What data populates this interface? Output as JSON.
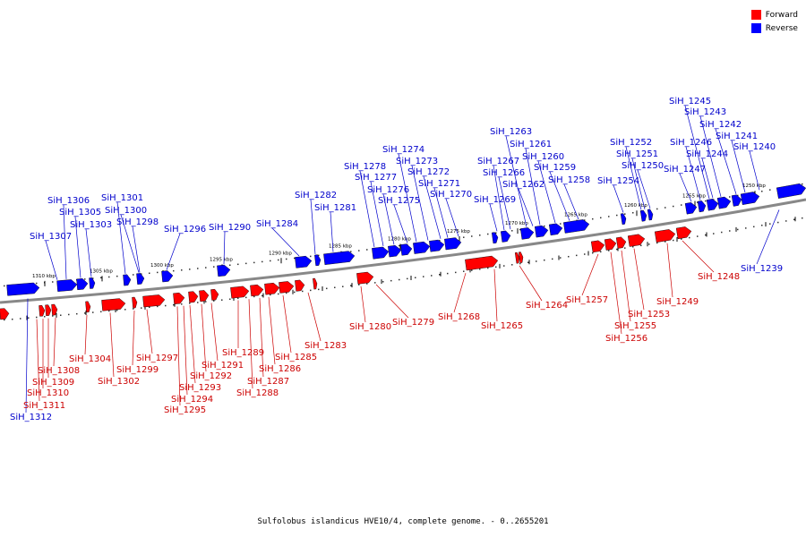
{
  "legend": {
    "forward_label": "Forward",
    "reverse_label": "Reverse",
    "forward_color": "#ff0000",
    "reverse_color": "#0000ff"
  },
  "caption": "Sulfolobus islandicus HVE10/4, complete genome. - 0..2655201",
  "colors": {
    "forward": "#ff0000",
    "reverse": "#0000ff",
    "backbone": "#888888",
    "label_forward": "#cc0000",
    "label_reverse": "#0000cc"
  },
  "scale_labels": [
    "1310 kbp",
    "1305 kbp",
    "1300 kbp",
    "1295 kbp",
    "1290 kbp",
    "1285 kbp",
    "1280 kbp",
    "1275 kbp",
    "1270 kbp",
    "1265 kbp",
    "1260 kbp",
    "1255 kbp",
    "1250 kbp"
  ],
  "reverse_genes": [
    "SiH_1312",
    "SiH_1307",
    "SiH_1306",
    "SiH_1305",
    "SiH_1303",
    "SiH_1301",
    "SiH_1300",
    "SiH_1298",
    "SiH_1296",
    "SiH_1290",
    "SiH_1284",
    "SiH_1282",
    "SiH_1281",
    "SiH_1278",
    "SiH_1277",
    "SiH_1276",
    "SiH_1275",
    "SiH_1274",
    "SiH_1273",
    "SiH_1272",
    "SiH_1271",
    "SiH_1270",
    "SiH_1269",
    "SiH_1267",
    "SiH_1266",
    "SiH_1263",
    "SiH_1262",
    "SiH_1261",
    "SiH_1260",
    "SiH_1259",
    "SiH_1258",
    "SiH_1254",
    "SiH_1252",
    "SiH_1251",
    "SiH_1250",
    "SiH_1247",
    "SiH_1246",
    "SiH_1245",
    "SiH_1244",
    "SiH_1243",
    "SiH_1242",
    "SiH_1241",
    "SiH_1240",
    "SiH_1239"
  ],
  "forward_genes": [
    "SiH_1311",
    "SiH_1310",
    "SiH_1309",
    "SiH_1308",
    "SiH_1304",
    "SiH_1302",
    "SiH_1299",
    "SiH_1297",
    "SiH_1295",
    "SiH_1294",
    "SiH_1293",
    "SiH_1292",
    "SiH_1291",
    "SiH_1289",
    "SiH_1288",
    "SiH_1287",
    "SiH_1286",
    "SiH_1285",
    "SiH_1283",
    "SiH_1280",
    "SiH_1279",
    "SiH_1268",
    "SiH_1265",
    "SiH_1264",
    "SiH_1257",
    "SiH_1256",
    "SiH_1255",
    "SiH_1253",
    "SiH_1249",
    "SiH_1248"
  ]
}
